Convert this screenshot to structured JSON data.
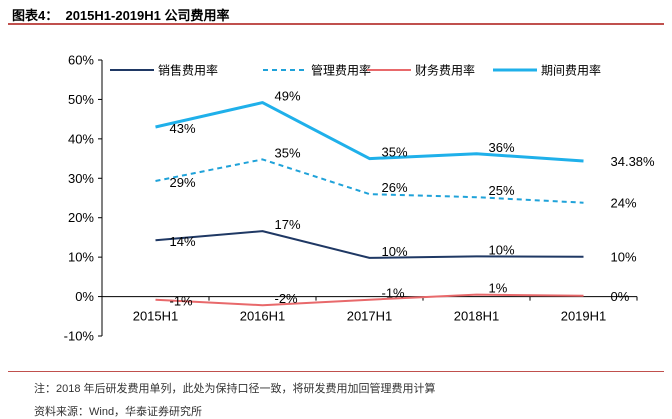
{
  "header": {
    "figure_label": "图表4：",
    "figure_title": "2015H1-2019H1 公司费用率",
    "accent_color": "#c0504d"
  },
  "chart_data": {
    "type": "line",
    "categories": [
      "2015H1",
      "2016H1",
      "2017H1",
      "2018H1",
      "2019H1"
    ],
    "ylim": [
      -10,
      60
    ],
    "yticks": [
      -10,
      0,
      10,
      20,
      30,
      40,
      50,
      60
    ],
    "ytick_labels": [
      "-10%",
      "0%",
      "10%",
      "20%",
      "30%",
      "40%",
      "50%",
      "60%"
    ],
    "legend_position": "top",
    "grid": false,
    "series": [
      {
        "name": "销售费用率",
        "color": "#1f3864",
        "style": "solid",
        "values": [
          14.3,
          16.6,
          9.8,
          10.2,
          10.1
        ],
        "labels": [
          "14%",
          "17%",
          "10%",
          "10%",
          "10%"
        ]
      },
      {
        "name": "管理费用率",
        "color": "#1fa2d9",
        "style": "dashed",
        "values": [
          29.3,
          34.8,
          26.0,
          25.2,
          23.8
        ],
        "labels": [
          "29%",
          "35%",
          "26%",
          "25%",
          "24%"
        ]
      },
      {
        "name": "财务费用率",
        "color": "#e8696b",
        "style": "solid",
        "values": [
          -0.8,
          -2.2,
          -0.8,
          0.5,
          0.2
        ],
        "labels": [
          "-1%",
          "-2%",
          "-1%",
          "1%",
          "0%"
        ]
      },
      {
        "name": "期间费用率",
        "color": "#1fb0ea",
        "style": "solid",
        "values": [
          43.0,
          49.2,
          35.0,
          36.2,
          34.38
        ],
        "labels": [
          "43%",
          "49%",
          "35%",
          "36%",
          "34.38%"
        ]
      }
    ]
  },
  "footer": {
    "note": "注：2018 年后研发费用单列，此处为保持口径一致，将研发费用加回管理费用计算",
    "source": "资料来源：Wind，华泰证券研究所"
  }
}
